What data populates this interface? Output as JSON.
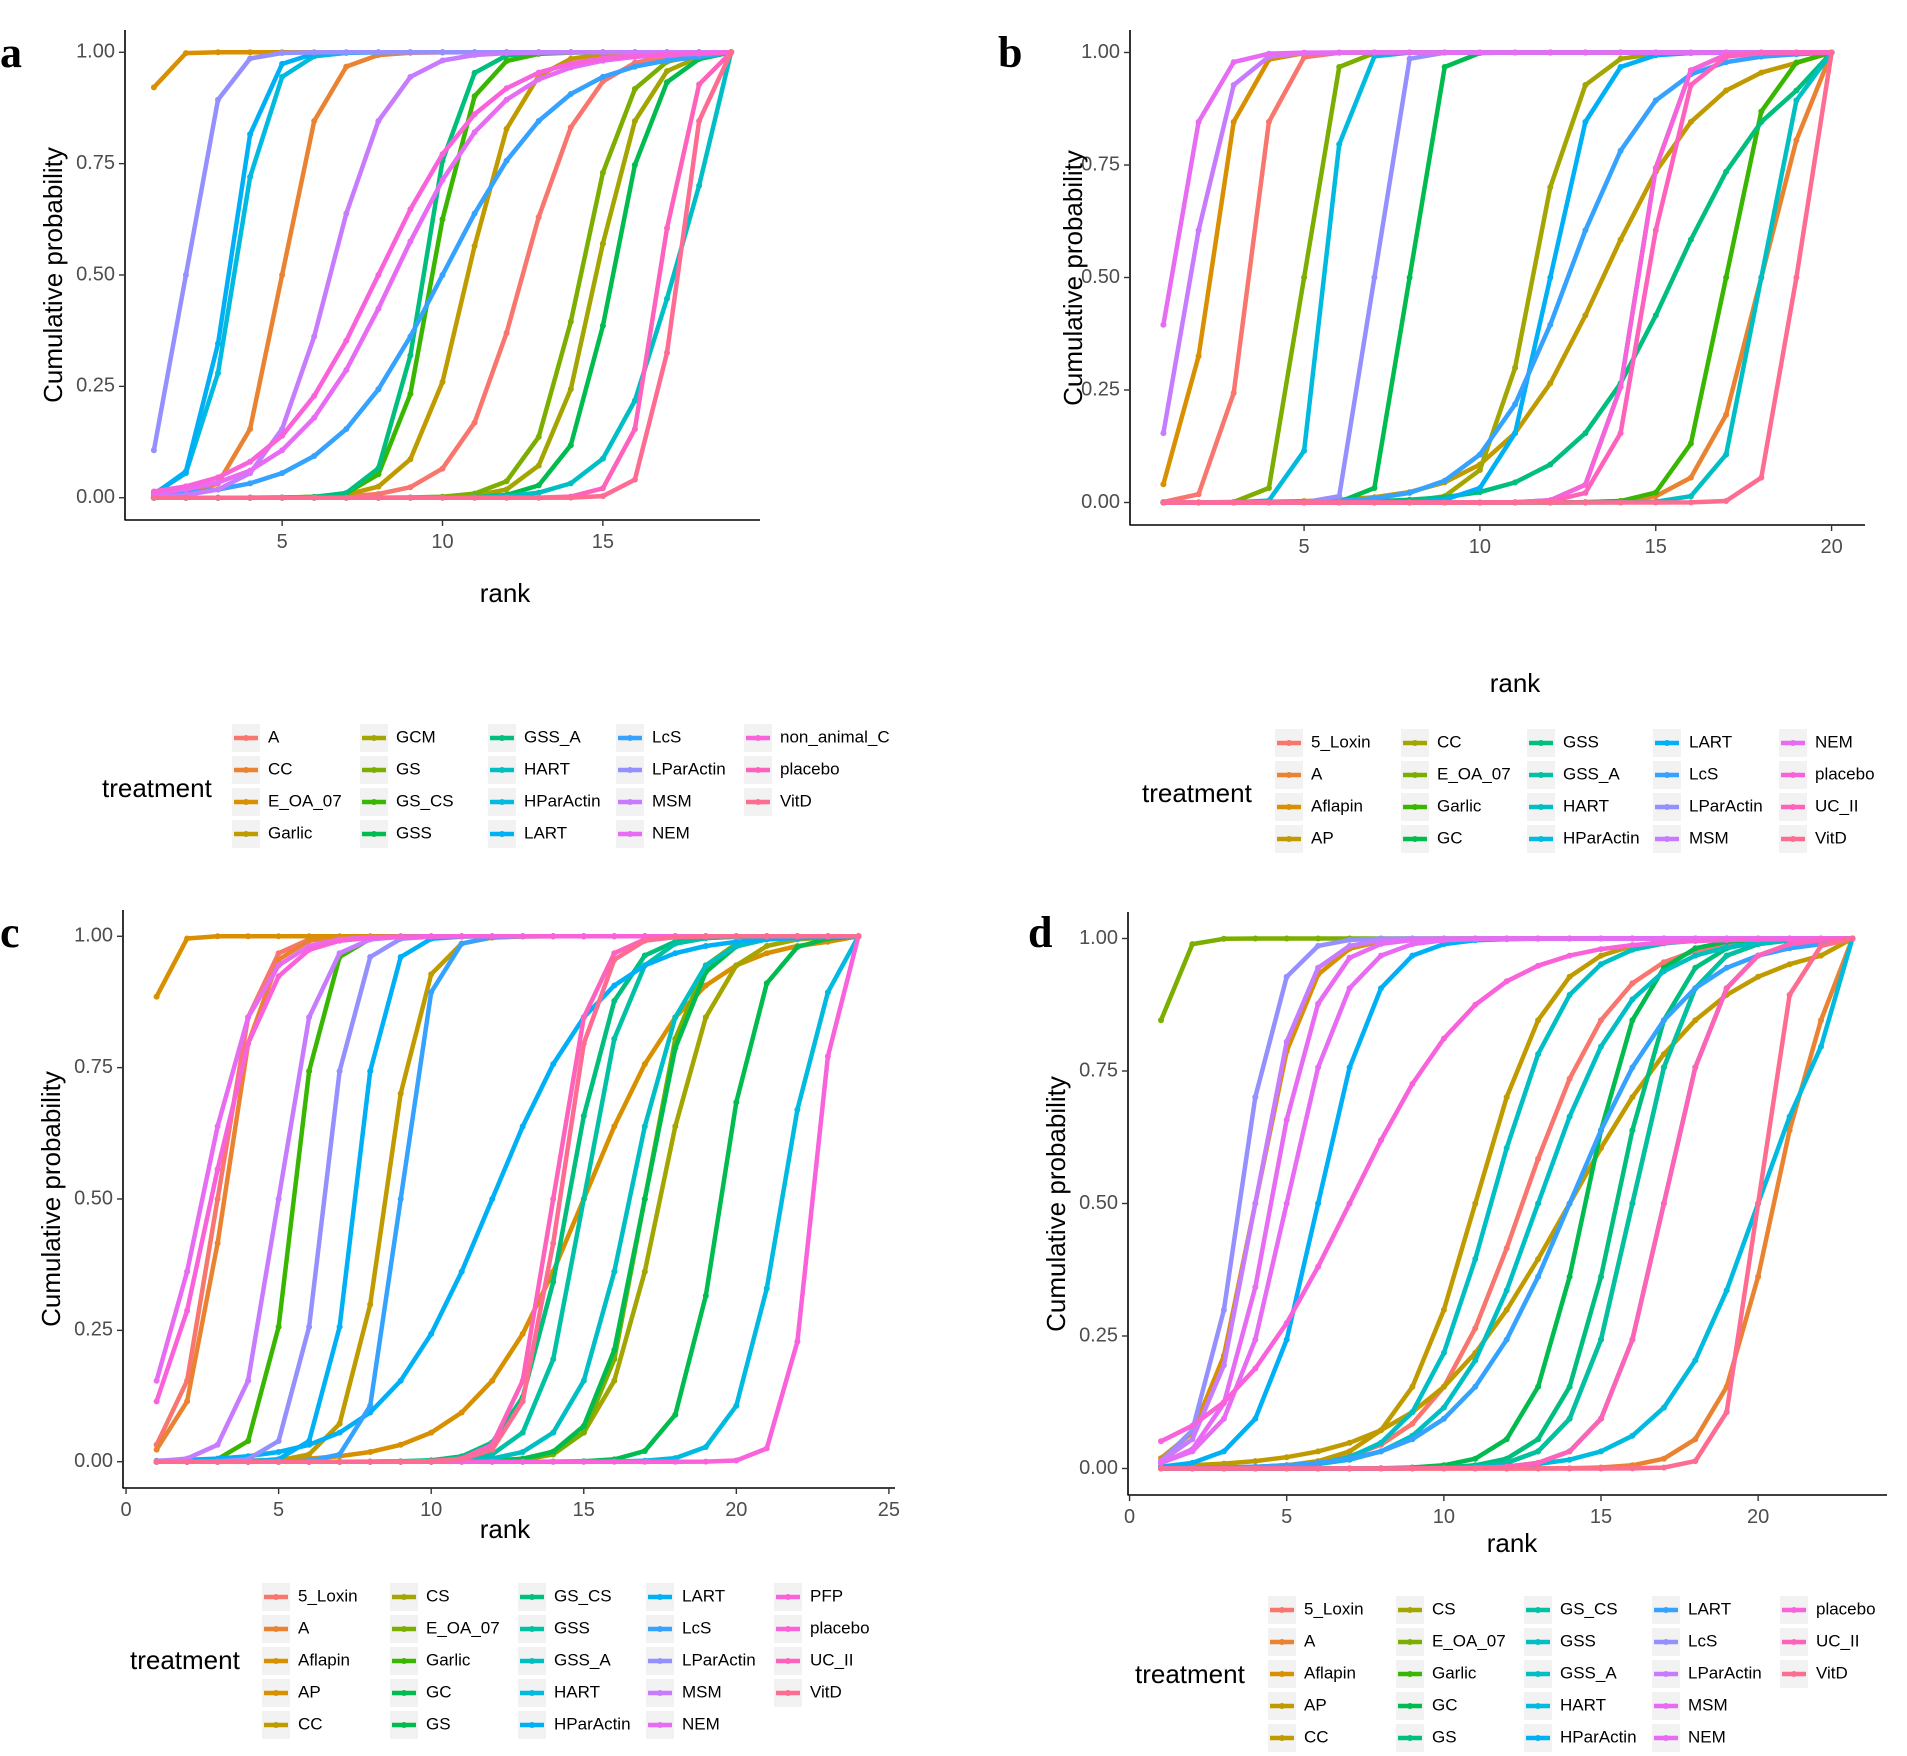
{
  "figure": {
    "legend_title": "treatment",
    "x_axis_label": "rank",
    "y_axis_label": "Cumulative probability"
  },
  "palette": [
    "#F8766D",
    "#EA8331",
    "#D89000",
    "#C09B00",
    "#A3A500",
    "#7CAE00",
    "#39B600",
    "#00BB4E",
    "#00BF7D",
    "#00C1A3",
    "#00BFC4",
    "#00BAE0",
    "#00B0F6",
    "#35A2FF",
    "#9590FF",
    "#C77CFF",
    "#E76BF3",
    "#FA62DB",
    "#FF62BC",
    "#FF6C91"
  ],
  "chart_data": [
    {
      "panel": "a",
      "type": "line",
      "xlabel": "rank",
      "ylabel": "Cumulative probability",
      "xlim": [
        0.1,
        19.9
      ],
      "xticks": [
        5,
        10,
        15
      ],
      "ylim": [
        -0.05,
        1.05
      ],
      "yticks": [
        0.0,
        0.25,
        0.5,
        0.75,
        1.0
      ],
      "ytick_labels": [
        "0.00",
        "0.25",
        "0.50",
        "0.75",
        "1.00"
      ],
      "legend_position": "bottom",
      "legend_rows": 4,
      "ranks": 19,
      "series": [
        {
          "name": "A",
          "profile": [
            12.5,
            1.6
          ]
        },
        {
          "name": "CC",
          "profile": [
            5.0,
            1.0
          ]
        },
        {
          "name": "E_OA_07",
          "profile": [
            0.35,
            0.45
          ]
        },
        {
          "name": "Garlic",
          "profile": [
            10.8,
            1.3
          ]
        },
        {
          "name": "GCM",
          "profile": [
            14.8,
            1.2
          ]
        },
        {
          "name": "GS",
          "profile": [
            14.3,
            1.2
          ]
        },
        {
          "name": "GS_CS",
          "profile": [
            9.7,
            1.0
          ]
        },
        {
          "name": "GSS",
          "profile": [
            15.3,
            1.1
          ]
        },
        {
          "name": "GSS_A",
          "profile": [
            9.4,
            0.9
          ]
        },
        {
          "name": "HART",
          "profile": [
            17.2,
            1.6
          ]
        },
        {
          "name": "HParActin",
          "profile": [
            3.5,
            0.9
          ]
        },
        {
          "name": "LART",
          "profile": [
            3.3,
            0.8
          ]
        },
        {
          "name": "LcS",
          "profile": [
            10.0,
            3.0
          ]
        },
        {
          "name": "LParActin",
          "profile": [
            2.0,
            0.8
          ]
        },
        {
          "name": "MSM",
          "profile": [
            6.5,
            1.5
          ]
        },
        {
          "name": "NEM",
          "profile": [
            8.5,
            2.8
          ]
        },
        {
          "name": "non_animal_C",
          "profile": [
            8.0,
            2.8
          ]
        },
        {
          "name": "placebo",
          "profile": [
            16.8,
            0.8
          ]
        },
        {
          "name": "VitD",
          "profile": [
            17.3,
            0.7
          ]
        }
      ]
    },
    {
      "panel": "b",
      "type": "line",
      "xlabel": "rank",
      "ylabel": "Cumulative probability",
      "xlim": [
        0.05,
        20.95
      ],
      "xticks": [
        5,
        10,
        15,
        20
      ],
      "ylim": [
        -0.05,
        1.05
      ],
      "yticks": [
        0.0,
        0.25,
        0.5,
        0.75,
        1.0
      ],
      "ytick_labels": [
        "0.00",
        "0.25",
        "0.50",
        "0.75",
        "1.00"
      ],
      "legend_position": "bottom",
      "legend_rows": 4,
      "ranks": 20,
      "series": [
        {
          "name": "5_Loxin",
          "profile": [
            3.4,
            0.6
          ]
        },
        {
          "name": "A",
          "profile": [
            18.0,
            1.2
          ]
        },
        {
          "name": "Aflapin",
          "profile": [
            2.3,
            0.7
          ]
        },
        {
          "name": "AP",
          "profile": [
            13.5,
            2.5
          ]
        },
        {
          "name": "CC",
          "profile": [
            11.5,
            1.0
          ]
        },
        {
          "name": "E_OA_07",
          "profile": [
            5.0,
            0.5
          ]
        },
        {
          "name": "Garlic",
          "profile": [
            17.0,
            0.9
          ]
        },
        {
          "name": "GC",
          "profile": [
            8.0,
            0.5
          ]
        },
        {
          "name": "GSS",
          "profile": [
            15.5,
            2.5
          ]
        },
        {
          "name": "GSS_A",
          "profile": [
            14.5,
            0.8
          ]
        },
        {
          "name": "HART",
          "profile": [
            18.0,
            0.8
          ]
        },
        {
          "name": "HParActin",
          "profile": [
            5.6,
            0.5
          ]
        },
        {
          "name": "LART",
          "profile": [
            12.0,
            1.0
          ]
        },
        {
          "name": "LcS",
          "profile": [
            12.5,
            2.0
          ]
        },
        {
          "name": "LParActin",
          "profile": [
            7.0,
            0.4
          ]
        },
        {
          "name": "MSM",
          "profile": [
            1.8,
            0.8
          ]
        },
        {
          "name": "NEM",
          "profile": [
            1.2,
            0.8
          ]
        },
        {
          "name": "placebo",
          "profile": [
            14.5,
            0.8
          ]
        },
        {
          "name": "UC_II",
          "profile": [
            14.8,
            0.8
          ]
        },
        {
          "name": "VitD",
          "profile": [
            19.0,
            0.6
          ]
        }
      ]
    },
    {
      "panel": "c",
      "type": "line",
      "xlabel": "rank",
      "ylabel": "Cumulative probability",
      "xlim": [
        -0.1,
        25.2
      ],
      "xticks": [
        0,
        5,
        10,
        15,
        20,
        25
      ],
      "ylim": [
        -0.05,
        1.05
      ],
      "yticks": [
        0.0,
        0.25,
        0.5,
        0.75,
        1.0
      ],
      "ytick_labels": [
        "0.00",
        "0.25",
        "0.50",
        "0.75",
        "1.00"
      ],
      "legend_position": "bottom",
      "legend_rows": 5,
      "ranks": 24,
      "series": [
        {
          "name": "5_Loxin",
          "profile": [
            3.0,
            1.0
          ]
        },
        {
          "name": "A",
          "profile": [
            3.2,
            1.0
          ]
        },
        {
          "name": "Aflapin",
          "profile": [
            0.4,
            0.5
          ]
        },
        {
          "name": "AP",
          "profile": [
            15.0,
            3.0
          ]
        },
        {
          "name": "CC",
          "profile": [
            8.5,
            1.0
          ]
        },
        {
          "name": "CS",
          "profile": [
            17.5,
            1.5
          ]
        },
        {
          "name": "E_OA_07",
          "profile": [
            17.0,
            1.2
          ]
        },
        {
          "name": "Garlic",
          "profile": [
            5.5,
            0.8
          ]
        },
        {
          "name": "GC",
          "profile": [
            17.0,
            1.3
          ]
        },
        {
          "name": "GS",
          "profile": [
            19.5,
            1.1
          ]
        },
        {
          "name": "GS_CS",
          "profile": [
            14.5,
            1.3
          ]
        },
        {
          "name": "GSS",
          "profile": [
            15.0,
            1.2
          ]
        },
        {
          "name": "GSS_A",
          "profile": [
            16.5,
            1.5
          ]
        },
        {
          "name": "HART",
          "profile": [
            21.5,
            1.2
          ]
        },
        {
          "name": "HParActin",
          "profile": [
            12.0,
            3.0
          ]
        },
        {
          "name": "LART",
          "profile": [
            7.5,
            0.8
          ]
        },
        {
          "name": "LcS",
          "profile": [
            9.0,
            0.8
          ]
        },
        {
          "name": "LParActin",
          "profile": [
            6.5,
            0.8
          ]
        },
        {
          "name": "MSM",
          "profile": [
            5.0,
            1.0
          ]
        },
        {
          "name": "NEM",
          "profile": [
            2.5,
            1.5
          ]
        },
        {
          "name": "PFP",
          "profile": [
            2.8,
            1.5
          ]
        },
        {
          "name": "placebo",
          "profile": [
            22.5,
            0.7
          ]
        },
        {
          "name": "UC_II",
          "profile": [
            14.0,
            1.0
          ]
        },
        {
          "name": "VitD",
          "profile": [
            14.2,
            1.0
          ]
        }
      ]
    },
    {
      "panel": "d",
      "type": "line",
      "xlabel": "rank",
      "ylabel": "Cumulative probability",
      "xlim": [
        -0.05,
        24.1
      ],
      "xticks": [
        0,
        5,
        10,
        15,
        20
      ],
      "ylim": [
        -0.05,
        1.05
      ],
      "yticks": [
        0.0,
        0.25,
        0.5,
        0.75,
        1.0
      ],
      "ytick_labels": [
        "0.00",
        "0.25",
        "0.50",
        "0.75",
        "1.00"
      ],
      "legend_position": "bottom",
      "legend_rows": 5,
      "ranks": 23,
      "series": [
        {
          "name": "5_Loxin",
          "profile": [
            12.5,
            2.5
          ]
        },
        {
          "name": "A",
          "profile": [
            20.5,
            1.5
          ]
        },
        {
          "name": "Aflapin",
          "profile": [
            4.0,
            1.3
          ]
        },
        {
          "name": "AP",
          "profile": [
            14.0,
            4.0
          ]
        },
        {
          "name": "CC",
          "profile": [
            11.0,
            2.0
          ]
        },
        {
          "name": "CS",
          "profile": [
            16.0,
            1.5
          ]
        },
        {
          "name": "E_OA_07",
          "profile": [
            0.4,
            0.6
          ]
        },
        {
          "name": "Garlic",
          "profile": [
            17.0,
            1.5
          ]
        },
        {
          "name": "GC",
          "profile": [
            14.5,
            1.5
          ]
        },
        {
          "name": "GS",
          "profile": [
            15.5,
            1.5
          ]
        },
        {
          "name": "GS_CS",
          "profile": [
            16.0,
            1.5
          ]
        },
        {
          "name": "GSS",
          "profile": [
            11.5,
            2.0
          ]
        },
        {
          "name": "GSS_A",
          "profile": [
            13.0,
            2.5
          ]
        },
        {
          "name": "HART",
          "profile": [
            20.0,
            2.5
          ]
        },
        {
          "name": "HParActin",
          "profile": [
            6.0,
            1.5
          ]
        },
        {
          "name": "LART",
          "profile": [
            14.0,
            3.0
          ]
        },
        {
          "name": "LcS",
          "profile": [
            3.5,
            1.0
          ]
        },
        {
          "name": "LParActin",
          "profile": [
            4.0,
            1.2
          ]
        },
        {
          "name": "MSM",
          "profile": [
            4.5,
            1.3
          ]
        },
        {
          "name": "NEM",
          "profile": [
            5.0,
            1.5
          ]
        },
        {
          "name": "placebo",
          "profile": [
            7.0,
            3.5
          ]
        },
        {
          "name": "UC_II",
          "profile": [
            17.0,
            1.5
          ]
        },
        {
          "name": "VitD",
          "profile": [
            20.0,
            0.8
          ]
        }
      ]
    }
  ]
}
